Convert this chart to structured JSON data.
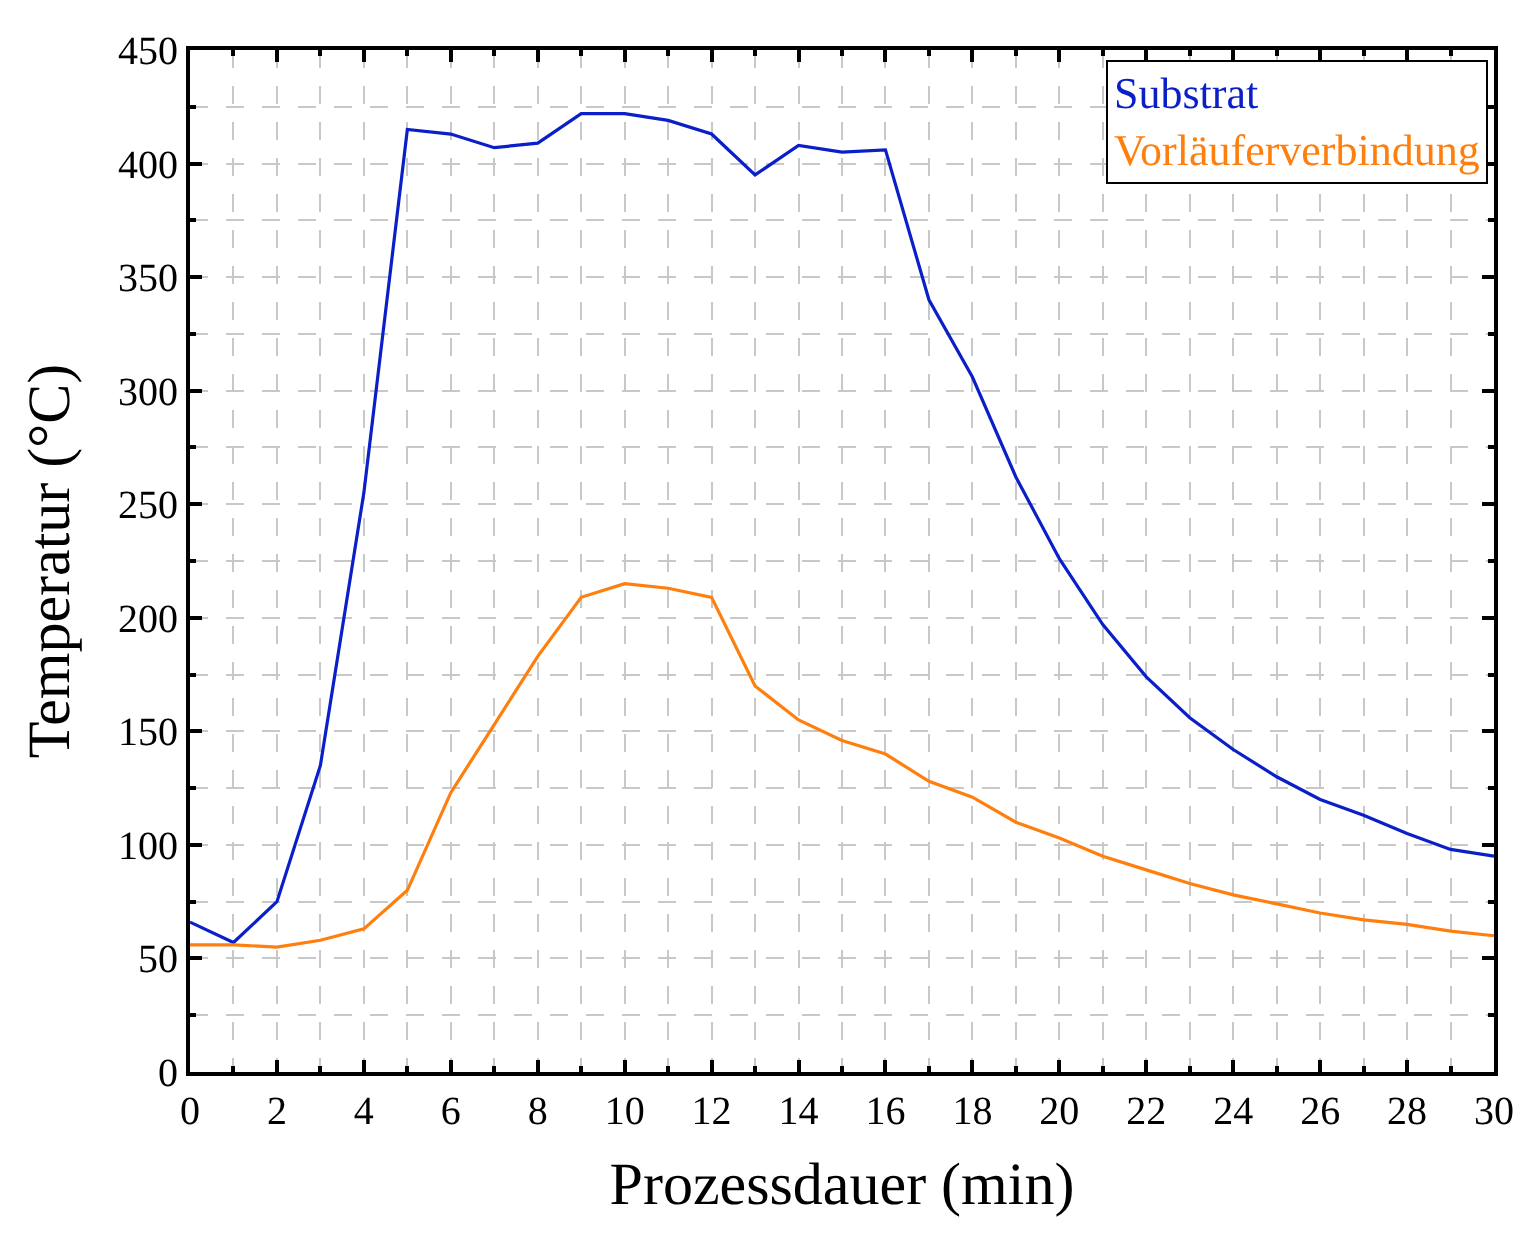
{
  "chart_data": {
    "type": "line",
    "xlabel": "Prozessdauer (min)",
    "ylabel": "Temperatur (°C)",
    "x": [
      0,
      1,
      2,
      3,
      4,
      5,
      6,
      7,
      8,
      9,
      10,
      11,
      12,
      13,
      14,
      15,
      16,
      17,
      18,
      19,
      20,
      21,
      22,
      23,
      24,
      25,
      26,
      27,
      28,
      29,
      30
    ],
    "series": [
      {
        "name": "Substrat",
        "color": "#0a1fc8",
        "values": [
          66,
          57,
          75,
          135,
          255,
          415,
          413,
          407,
          409,
          422,
          422,
          419,
          413,
          395,
          408,
          405,
          406,
          340,
          306,
          262,
          226,
          197,
          174,
          156,
          142,
          130,
          120,
          113,
          105,
          98,
          95
        ]
      },
      {
        "name": "Vorläuferverbindung",
        "color": "#ff7f0e",
        "values": [
          56,
          56,
          55,
          58,
          63,
          80,
          123,
          153,
          183,
          209,
          215,
          213,
          209,
          170,
          155,
          146,
          140,
          128,
          121,
          110,
          103,
          95,
          89,
          83,
          78,
          74,
          70,
          67,
          65,
          62,
          60
        ]
      }
    ],
    "xlim": [
      0,
      30
    ],
    "xticks": [
      0,
      2,
      4,
      6,
      8,
      10,
      12,
      14,
      16,
      18,
      20,
      22,
      24,
      26,
      28,
      30
    ],
    "ylim": [
      0,
      450
    ],
    "yticks": [
      0,
      50,
      100,
      150,
      200,
      250,
      300,
      350,
      400,
      450
    ],
    "grid": true,
    "legend": "top right",
    "marker": "none",
    "line_style": "solid"
  }
}
